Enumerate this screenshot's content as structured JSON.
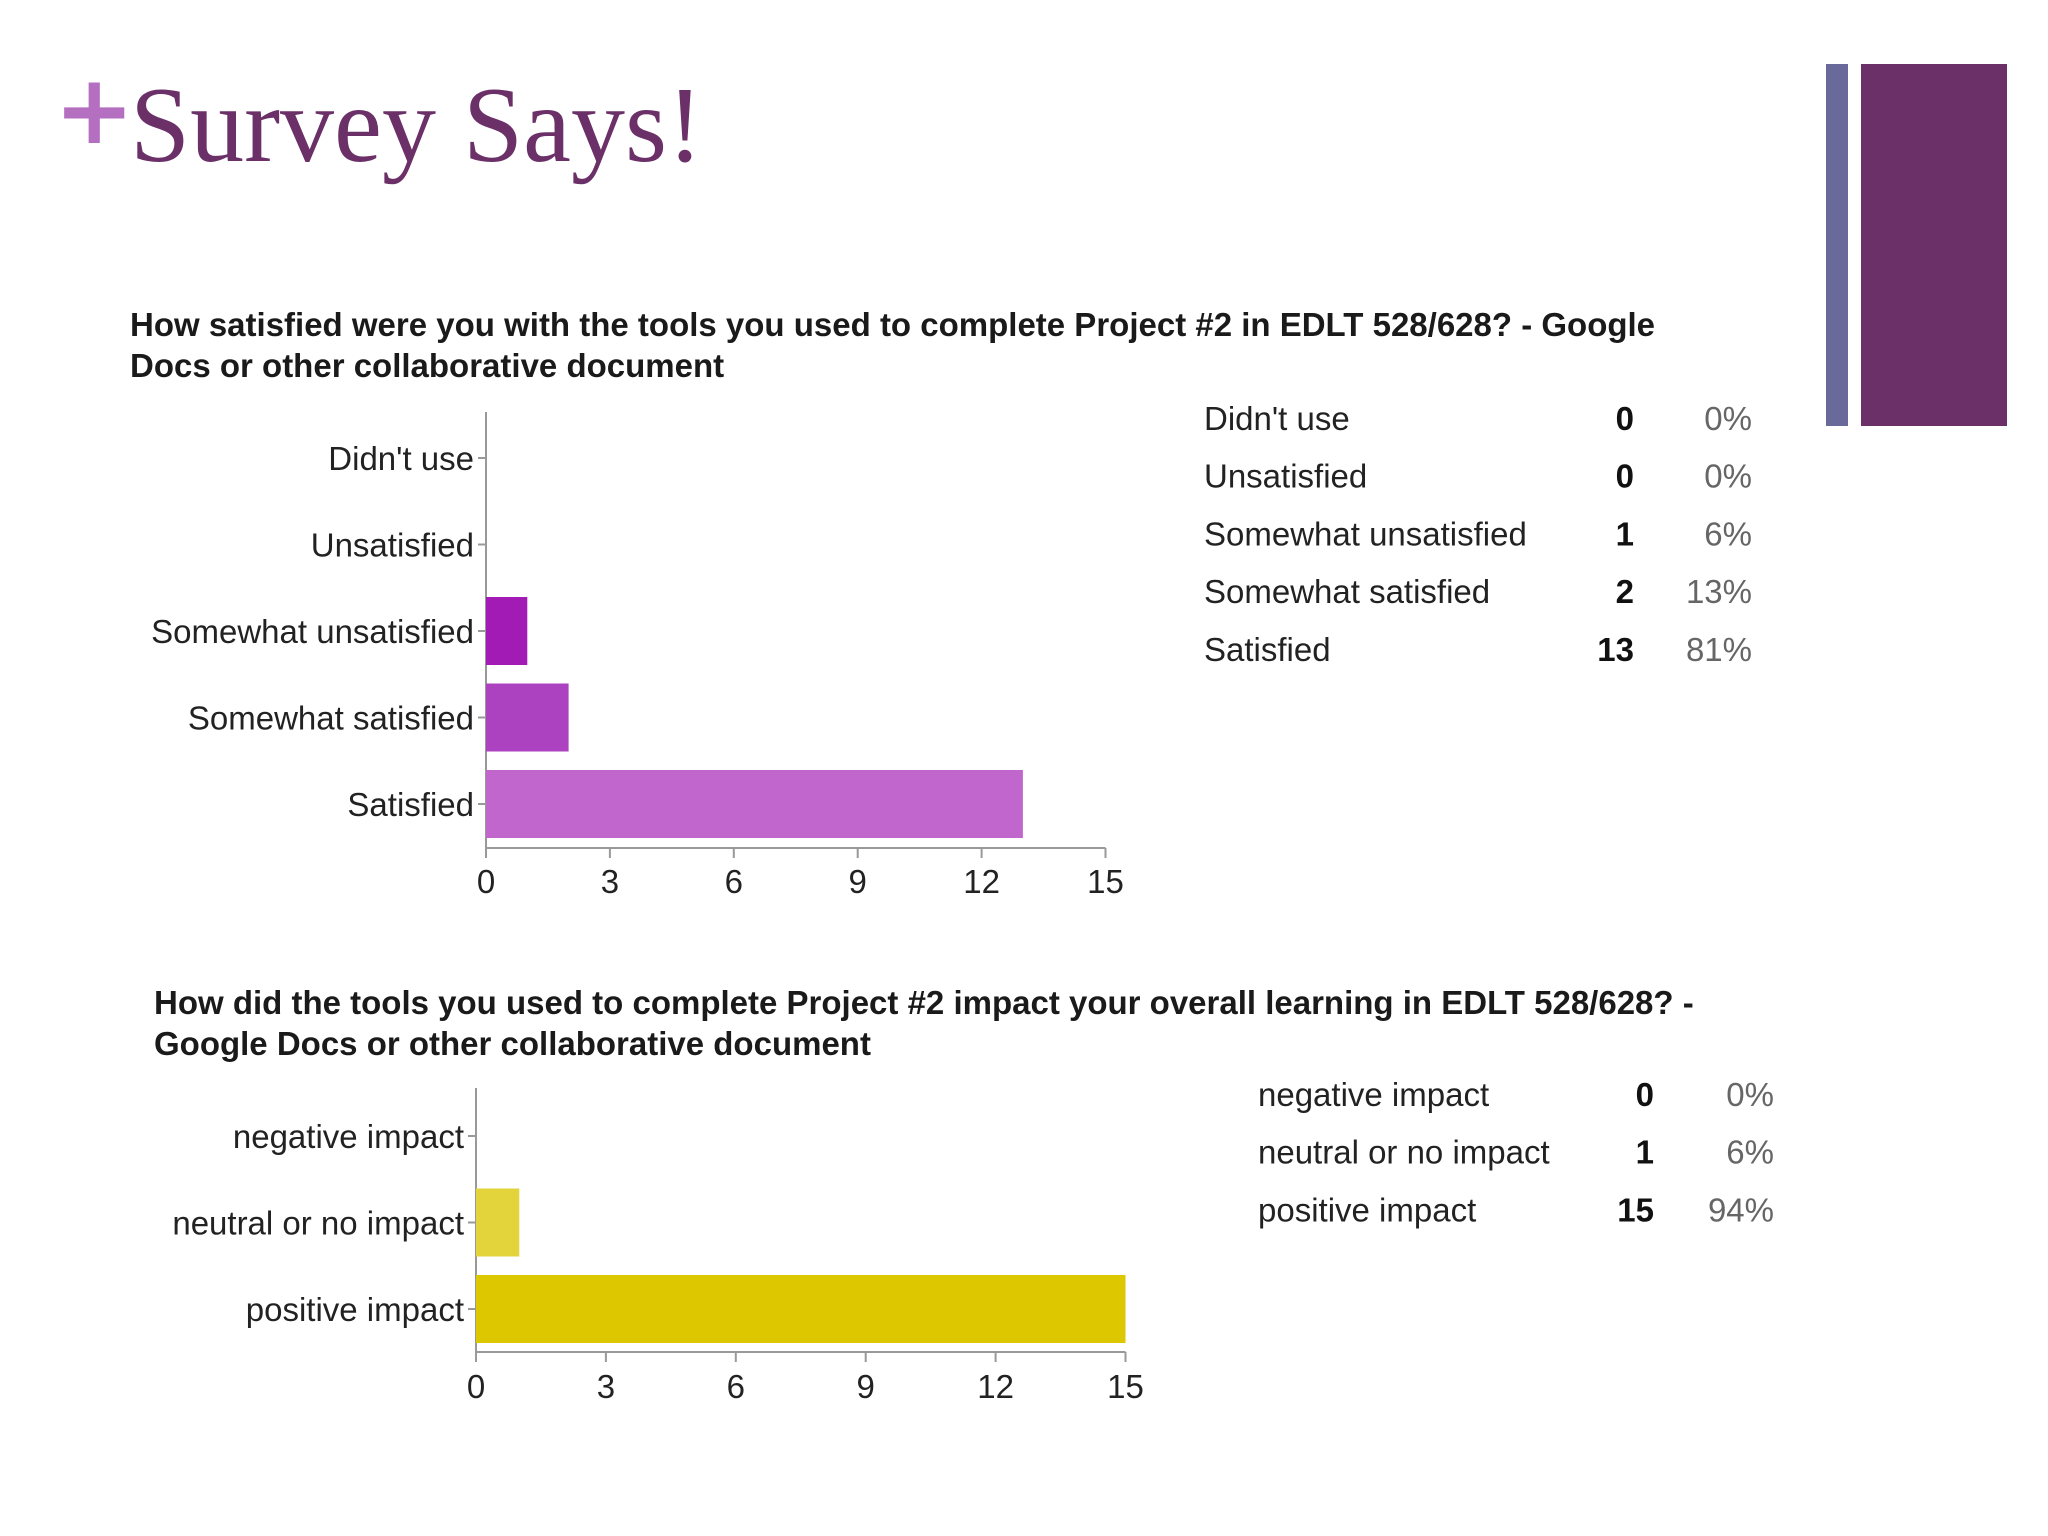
{
  "slide": {
    "plus": "+",
    "title": "Survey Says!",
    "accent_color": "#6b3068",
    "plus_color": "#b46fc0",
    "deco_thin_color": "#6a6a9a",
    "deco_wide_color": "#6b3068"
  },
  "chart_data": [
    {
      "type": "bar",
      "orientation": "horizontal",
      "title": "How satisfied were you with the tools you used to complete Project #2 in EDLT 528/628? - Google Docs or other collaborative document",
      "categories": [
        "Didn't use",
        "Unsatisfied",
        "Somewhat unsatisfied",
        "Somewhat satisfied",
        "Satisfied"
      ],
      "values": [
        0,
        0,
        1,
        2,
        13
      ],
      "percents": [
        "0%",
        "0%",
        "6%",
        "13%",
        "81%"
      ],
      "colors": [
        "#8e12a8",
        "#8e12a8",
        "#a21bb5",
        "#ac42c0",
        "#c066cc"
      ],
      "xticks": [
        0,
        3,
        6,
        9,
        12,
        15
      ],
      "xlim": [
        0,
        15
      ],
      "grid": false,
      "legend": "right"
    },
    {
      "type": "bar",
      "orientation": "horizontal",
      "title": "How did the tools you used to complete Project #2 impact your overall learning in EDLT 528/628? - Google Docs or other collaborative document",
      "categories": [
        "negative impact",
        "neutral or no impact",
        "positive impact"
      ],
      "values": [
        0,
        1,
        15
      ],
      "percents": [
        "0%",
        "6%",
        "94%"
      ],
      "colors": [
        "#d8c400",
        "#e3d43c",
        "#dcc700"
      ],
      "xticks": [
        0,
        3,
        6,
        9,
        12,
        15
      ],
      "xlim": [
        0,
        15
      ],
      "grid": false,
      "legend": "right"
    }
  ]
}
